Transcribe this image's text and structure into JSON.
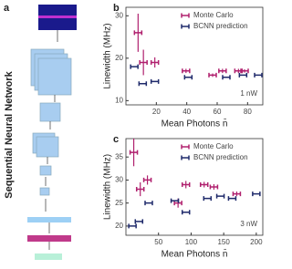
{
  "panels": {
    "a": "a",
    "b": "b",
    "c": "c"
  },
  "diagram": {
    "title": "Sequential Neural Network"
  },
  "chart_data": [
    {
      "type": "scatter",
      "xlabel": "Mean Photons n̄",
      "ylabel": "Linewidth (MHz)",
      "annotation": "1 nW",
      "xlim": [
        0,
        90
      ],
      "ylim": [
        9,
        32
      ],
      "xticks": [
        20,
        40,
        60,
        80
      ],
      "yticks": [
        10,
        20,
        30
      ],
      "legend": "upper right",
      "series": [
        {
          "name": "Monte Carlo",
          "color": "#b0206e",
          "x": [
            8,
            11.5,
            19,
            39.5,
            57,
            63.5,
            74,
            78
          ],
          "values": [
            26,
            19,
            19,
            17,
            16,
            17,
            17,
            17
          ],
          "errors": [
            4.5,
            3,
            1.2,
            0.5,
            0.4,
            0.5,
            0.5,
            0.4
          ]
        },
        {
          "name": "BCNN prediction",
          "color": "#1f2a6b",
          "x": [
            5.5,
            11,
            19,
            41,
            66,
            77,
            87
          ],
          "values": [
            18,
            14,
            14.5,
            15.5,
            15.5,
            16,
            16
          ]
        }
      ]
    },
    {
      "type": "scatter",
      "xlabel": "Mean Photons n̄",
      "ylabel": "Linewidth (MHz)",
      "annotation": "3 nW",
      "xlim": [
        0,
        210
      ],
      "ylim": [
        18,
        39
      ],
      "xticks": [
        50,
        100,
        150,
        200
      ],
      "yticks": [
        20,
        25,
        30,
        35
      ],
      "legend": "upper right",
      "series": [
        {
          "name": "Monte Carlo",
          "color": "#b0206e",
          "x": [
            12,
            22,
            33,
            80,
            92,
            120,
            135,
            170
          ],
          "values": [
            36,
            28,
            30,
            25,
            29,
            29,
            28.5,
            27
          ],
          "errors": [
            3,
            1.5,
            1,
            1,
            0.8,
            0.6,
            0.6,
            0.5
          ]
        },
        {
          "name": "BCNN prediction",
          "color": "#1f2a6b",
          "x": [
            10,
            20,
            35,
            75,
            92,
            125,
            145,
            163,
            200
          ],
          "values": [
            20,
            21,
            25,
            25.5,
            23,
            26,
            26.5,
            26,
            27
          ]
        }
      ]
    }
  ]
}
